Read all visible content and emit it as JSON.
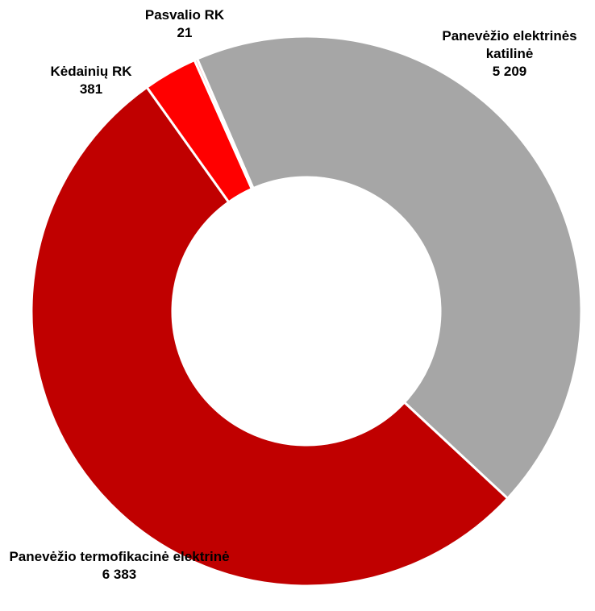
{
  "chart_data": {
    "type": "donut",
    "categories": [
      "Panevėžio elektrinės katilinė",
      "Panevėžio termofikacinė elektrinė",
      "Kėdainių RK",
      "Pasvalio RK"
    ],
    "values": [
      5209,
      6383,
      381,
      21
    ],
    "value_labels": [
      "5 209",
      "6 383",
      "381",
      "21"
    ],
    "colors": [
      "#a6a6a6",
      "#c00000",
      "#ff0000",
      "#ffb3b3"
    ]
  }
}
